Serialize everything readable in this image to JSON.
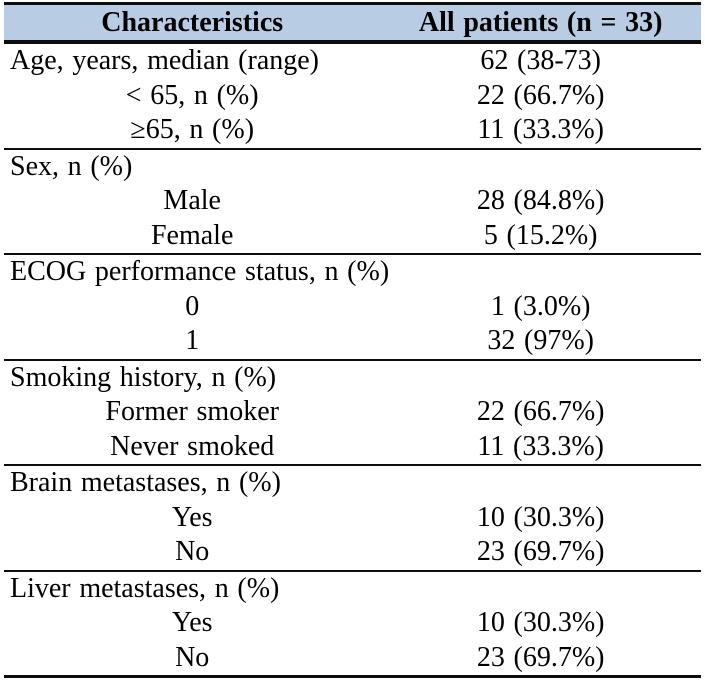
{
  "table": {
    "colors": {
      "header_bg": "#b8cce4",
      "border": "#0d0d0d",
      "text": "#000000"
    },
    "header": {
      "col1": "Characteristics",
      "col2": "All patients (n = 33)"
    },
    "sections": [
      {
        "name": "age",
        "rows": [
          {
            "label": "Age, years, median (range)",
            "value": "62 (38-73)"
          },
          {
            "label": "< 65, n (%)",
            "value": "22 (66.7%)"
          },
          {
            "label": "≥65, n (%)",
            "value": "11 (33.3%)"
          }
        ]
      },
      {
        "name": "sex",
        "rows": [
          {
            "label": "Sex, n (%)",
            "value": ""
          },
          {
            "label": "Male",
            "value": "28 (84.8%)"
          },
          {
            "label": "Female",
            "value": "5 (15.2%)"
          }
        ]
      },
      {
        "name": "ecog",
        "rows": [
          {
            "label": "ECOG performance status, n (%)",
            "value": ""
          },
          {
            "label": "0",
            "value": "1 (3.0%)"
          },
          {
            "label": "1",
            "value": "32 (97%)"
          }
        ]
      },
      {
        "name": "smoking",
        "rows": [
          {
            "label": "Smoking history, n (%)",
            "value": ""
          },
          {
            "label": "Former smoker",
            "value": "22 (66.7%)"
          },
          {
            "label": "Never smoked",
            "value": "11 (33.3%)"
          }
        ]
      },
      {
        "name": "brain-metastases",
        "rows": [
          {
            "label": "Brain metastases, n (%)",
            "value": ""
          },
          {
            "label": "Yes",
            "value": "10 (30.3%)"
          },
          {
            "label": "No",
            "value": "23 (69.7%)"
          }
        ]
      },
      {
        "name": "liver-metastases",
        "rows": [
          {
            "label": "Liver metastases, n (%)",
            "value": ""
          },
          {
            "label": "Yes",
            "value": "10 (30.3%)"
          },
          {
            "label": "No",
            "value": "23 (69.7%)"
          }
        ]
      }
    ]
  }
}
